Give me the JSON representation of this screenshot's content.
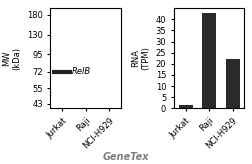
{
  "chart_data": [
    {
      "type": "blot",
      "categories": [
        "Jurkat",
        "Raji",
        "NCI-H929"
      ],
      "values": [
        72,
        null,
        null
      ],
      "color": "#222222",
      "ylabel": "MW\n(kDa)",
      "log": "y",
      "ylim": [
        40,
        200
      ],
      "yticks": [
        180,
        130,
        95,
        72,
        55,
        43
      ],
      "annotations": [
        "RelB"
      ]
    },
    {
      "type": "bar",
      "categories": [
        "Jurkat",
        "Raji",
        "NCI-H929"
      ],
      "values": [
        1.5,
        43,
        22
      ],
      "color": "#2a2a2a",
      "ylabel": "RNA\n(TPM)",
      "ylim": [
        0,
        45
      ],
      "yticks": [
        0,
        5,
        10,
        15,
        20,
        25,
        30,
        35,
        40
      ],
      "annotations": [
        "GeneTex"
      ]
    }
  ]
}
